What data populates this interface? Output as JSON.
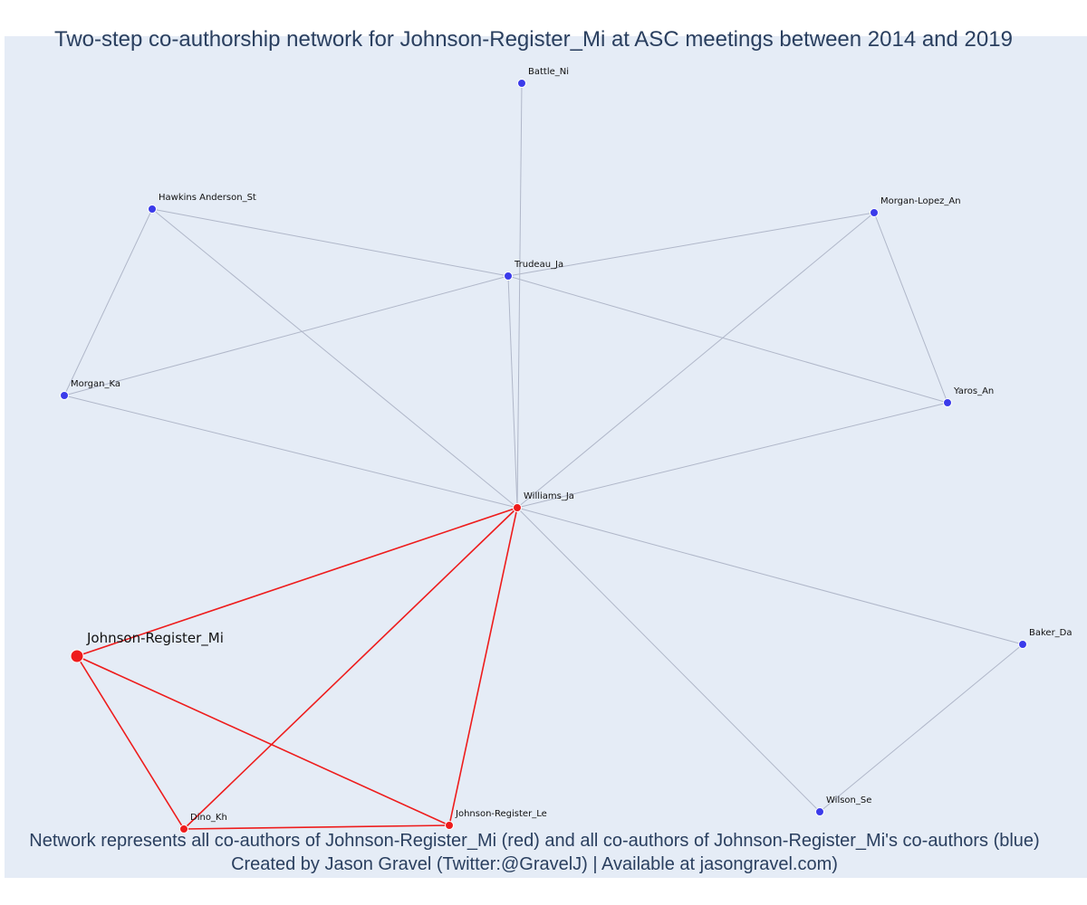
{
  "title": "Two-step co-authorship network for Johnson-Register_Mi at ASC meetings between 2014 and 2019",
  "caption": {
    "line1": "Network represents all co-authors of Johnson-Register_Mi (red) and all co-authors of Johnson-Register_Mi's co-authors (blue)",
    "line2": "Created by Jason Gravel (Twitter:@GravelJ) | Available at jasongravel.com)"
  },
  "colors": {
    "coauthor": "#ee1c1c",
    "second_step": "#3b3bea",
    "edge_direct": "#ee1c1c",
    "edge_indirect": "#b0b7c9",
    "background": "#e5ecf6"
  },
  "nodes": [
    {
      "id": "johnson_register_mi",
      "label": "Johnson-Register_Mi",
      "group": "ego"
    },
    {
      "id": "williams_ja",
      "label": "Williams_Ja",
      "group": "coauthor"
    },
    {
      "id": "dino_kh",
      "label": "Dino_Kh",
      "group": "coauthor"
    },
    {
      "id": "johnson_register_le",
      "label": "Johnson-Register_Le",
      "group": "coauthor"
    },
    {
      "id": "battle_ni",
      "label": "Battle_Ni",
      "group": "second"
    },
    {
      "id": "hawkins_anderson_st",
      "label": "Hawkins Anderson_St",
      "group": "second"
    },
    {
      "id": "morgan_lopez_an",
      "label": "Morgan-Lopez_An",
      "group": "second"
    },
    {
      "id": "trudeau_ja",
      "label": "Trudeau_Ja",
      "group": "second"
    },
    {
      "id": "morgan_ka",
      "label": "Morgan_Ka",
      "group": "second"
    },
    {
      "id": "yaros_an",
      "label": "Yaros_An",
      "group": "second"
    },
    {
      "id": "baker_da",
      "label": "Baker_Da",
      "group": "second"
    },
    {
      "id": "wilson_se",
      "label": "Wilson_Se",
      "group": "second"
    }
  ],
  "edges": [
    {
      "source": "johnson_register_mi",
      "target": "williams_ja",
      "type": "direct"
    },
    {
      "source": "johnson_register_mi",
      "target": "dino_kh",
      "type": "direct"
    },
    {
      "source": "johnson_register_mi",
      "target": "johnson_register_le",
      "type": "direct"
    },
    {
      "source": "williams_ja",
      "target": "dino_kh",
      "type": "direct"
    },
    {
      "source": "williams_ja",
      "target": "johnson_register_le",
      "type": "direct"
    },
    {
      "source": "dino_kh",
      "target": "johnson_register_le",
      "type": "direct"
    },
    {
      "source": "battle_ni",
      "target": "williams_ja",
      "type": "indirect"
    },
    {
      "source": "hawkins_anderson_st",
      "target": "trudeau_ja",
      "type": "indirect"
    },
    {
      "source": "hawkins_anderson_st",
      "target": "morgan_ka",
      "type": "indirect"
    },
    {
      "source": "hawkins_anderson_st",
      "target": "williams_ja",
      "type": "indirect"
    },
    {
      "source": "morgan_lopez_an",
      "target": "trudeau_ja",
      "type": "indirect"
    },
    {
      "source": "morgan_lopez_an",
      "target": "yaros_an",
      "type": "indirect"
    },
    {
      "source": "morgan_lopez_an",
      "target": "williams_ja",
      "type": "indirect"
    },
    {
      "source": "trudeau_ja",
      "target": "morgan_ka",
      "type": "indirect"
    },
    {
      "source": "trudeau_ja",
      "target": "yaros_an",
      "type": "indirect"
    },
    {
      "source": "trudeau_ja",
      "target": "williams_ja",
      "type": "indirect"
    },
    {
      "source": "morgan_ka",
      "target": "williams_ja",
      "type": "indirect"
    },
    {
      "source": "yaros_an",
      "target": "williams_ja",
      "type": "indirect"
    },
    {
      "source": "baker_da",
      "target": "williams_ja",
      "type": "indirect"
    },
    {
      "source": "baker_da",
      "target": "wilson_se",
      "type": "indirect"
    },
    {
      "source": "wilson_se",
      "target": "williams_ja",
      "type": "indirect"
    }
  ]
}
